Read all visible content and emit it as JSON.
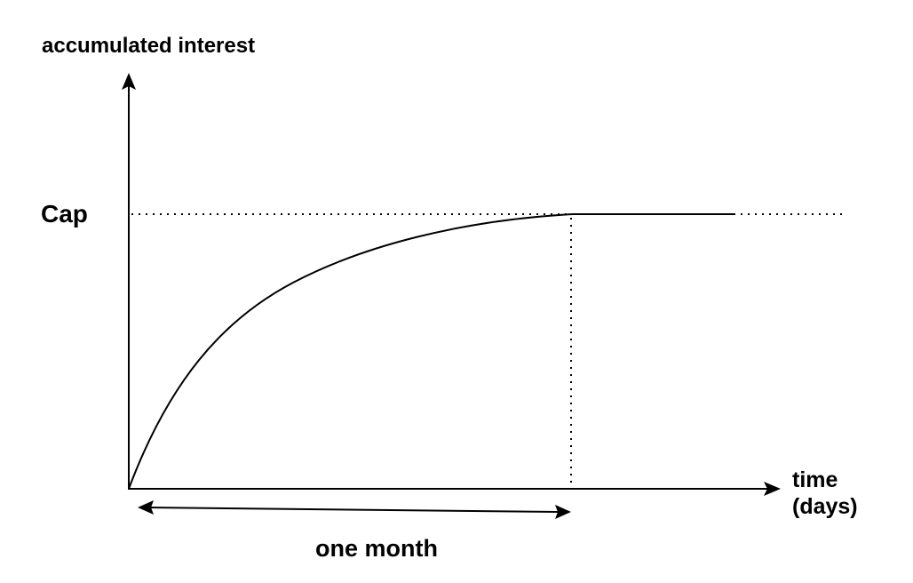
{
  "y_axis_label": "accumulated interest",
  "cap_label": "Cap",
  "x_axis_label_line1": "time",
  "x_axis_label_line2": "(days)",
  "span_label": "one month",
  "colors": {
    "ink": "#000000",
    "background": "#ffffff"
  },
  "curve": {
    "shape": "concave-saturating",
    "plateau": "cap",
    "plateau_reached_at": "one month"
  }
}
